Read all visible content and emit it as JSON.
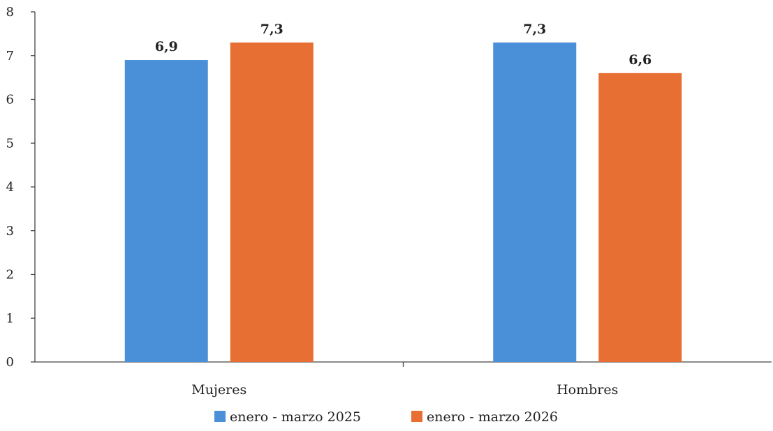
{
  "chart_data": {
    "type": "bar",
    "categories": [
      "Mujeres",
      "Hombres"
    ],
    "series": [
      {
        "name": "enero - marzo 2025",
        "values": [
          6.9,
          7.3
        ],
        "labels": [
          "6,9",
          "7,3"
        ],
        "color": "#4a90d9"
      },
      {
        "name": "enero - marzo 2026",
        "values": [
          7.3,
          6.6
        ],
        "labels": [
          "7,3",
          "6,6"
        ],
        "color": "#e86f33"
      }
    ],
    "title": "",
    "xlabel": "",
    "ylabel": "",
    "ylim": [
      0,
      8
    ],
    "yticks": [
      0,
      1,
      2,
      3,
      4,
      5,
      6,
      7,
      8
    ],
    "ytick_labels": [
      "0",
      "1",
      "2",
      "3",
      "4",
      "5",
      "6",
      "7",
      "8"
    ],
    "grid": false,
    "legend_position": "bottom"
  }
}
